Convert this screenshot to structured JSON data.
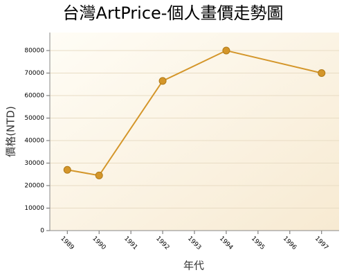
{
  "chart_data": {
    "type": "line",
    "title": "台灣ArtPrice-個人畫價走勢圖",
    "x_label": "年代",
    "y_label": "價格(NTD)",
    "x": [
      1989,
      1990,
      1992,
      1994,
      1997
    ],
    "series": [
      {
        "name": "價格",
        "color": "#d4962a",
        "values": [
          27000,
          24500,
          66500,
          80000,
          70000
        ]
      }
    ],
    "xlim": [
      1988.45,
      1997.55
    ],
    "xticks": [
      1989,
      1990,
      1991,
      1992,
      1993,
      1994,
      1995,
      1996,
      1997
    ],
    "ylim": [
      0,
      88000
    ],
    "yticks": [
      0,
      10000,
      20000,
      30000,
      40000,
      50000,
      60000,
      70000,
      80000
    ],
    "grid": true
  }
}
